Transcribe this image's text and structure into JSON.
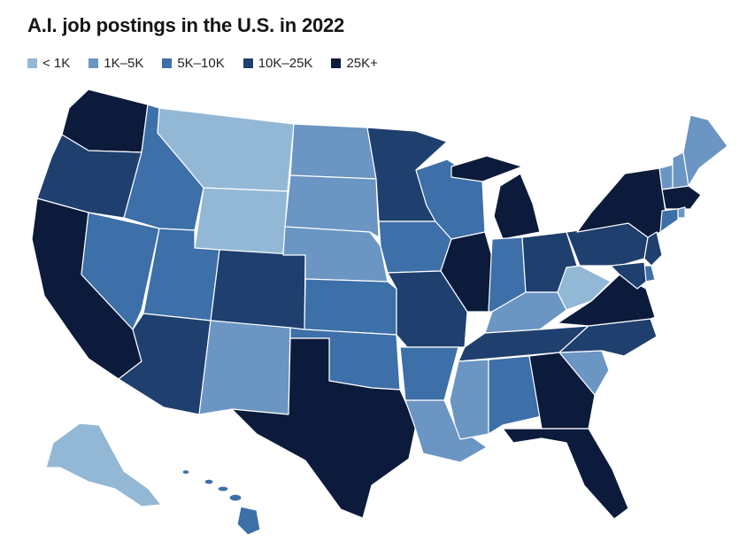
{
  "title": "A.I. job postings in the U.S. in 2022",
  "colors": {
    "lt1k": "#93b8d6",
    "1k_5k": "#6b95c2",
    "5k_10k": "#3d6fa8",
    "10k_25k": "#1f3f6e",
    "25k_plus": "#0c1b3c"
  },
  "legend": [
    {
      "label": "< 1K",
      "bin": "lt1k"
    },
    {
      "label": "1K–5K",
      "bin": "1k_5k"
    },
    {
      "label": "5K–10K",
      "bin": "5k_10k"
    },
    {
      "label": "10K–25K",
      "bin": "10k_25k"
    },
    {
      "label": "25K+",
      "bin": "25k_plus"
    }
  ],
  "states": {
    "WA": "25k_plus",
    "OR": "10k_25k",
    "CA": "25k_plus",
    "ID": "5k_10k",
    "NV": "5k_10k",
    "MT": "lt1k",
    "WY": "lt1k",
    "UT": "5k_10k",
    "AZ": "10k_25k",
    "CO": "10k_25k",
    "NM": "1k_5k",
    "ND": "1k_5k",
    "SD": "1k_5k",
    "NE": "1k_5k",
    "KS": "5k_10k",
    "OK": "5k_10k",
    "TX": "25k_plus",
    "MN": "10k_25k",
    "IA": "5k_10k",
    "MO": "10k_25k",
    "AR": "5k_10k",
    "LA": "1k_5k",
    "WI": "5k_10k",
    "IL": "25k_plus",
    "MI": "25k_plus",
    "IN": "5k_10k",
    "OH": "10k_25k",
    "KY": "1k_5k",
    "TN": "10k_25k",
    "MS": "1k_5k",
    "AL": "5k_10k",
    "GA": "25k_plus",
    "FL": "25k_plus",
    "SC": "1k_5k",
    "NC": "10k_25k",
    "VA": "25k_plus",
    "WV": "lt1k",
    "PA": "10k_25k",
    "NY": "25k_plus",
    "VT": "1k_5k",
    "NH": "1k_5k",
    "ME": "1k_5k",
    "MA": "25k_plus",
    "RI": "1k_5k",
    "CT": "5k_10k",
    "NJ": "10k_25k",
    "DE": "5k_10k",
    "MD": "10k_25k",
    "AK": "lt1k",
    "HI": "5k_10k"
  }
}
